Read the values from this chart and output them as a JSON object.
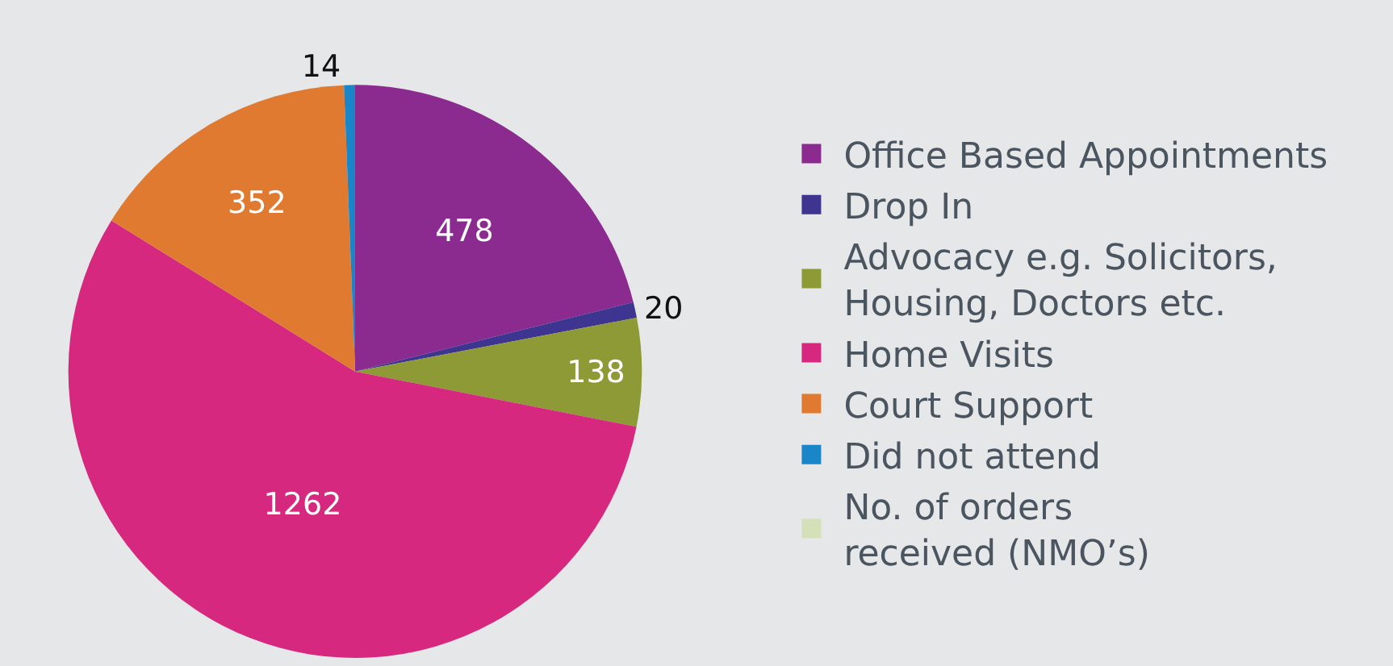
{
  "chart_data": {
    "type": "pie",
    "categories": [
      "Office Based Appointments",
      "Drop In",
      "Advocacy e.g. Solicitors,\nHousing, Doctors etc.",
      "Home Visits",
      "Court Support",
      "Did not attend",
      "No. of orders\nreceived (NMO’s)"
    ],
    "values": [
      478,
      20,
      138,
      1262,
      352,
      14,
      0
    ],
    "colors": [
      "#8b2a8f",
      "#3d3590",
      "#8d9a35",
      "#d6287f",
      "#e07a30",
      "#1a86c8",
      "#d4e0b8"
    ],
    "data_labels": true,
    "legend": "right"
  }
}
